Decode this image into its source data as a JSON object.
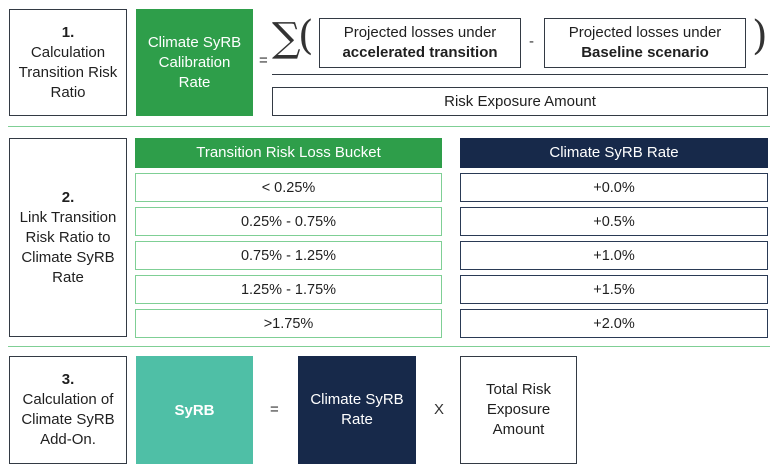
{
  "section1": {
    "step_num": "1.",
    "step_text": "Calculation Transition Risk Ratio",
    "rate_box": "Climate SyRB Calibration Rate",
    "equals": "=",
    "sum_symbol": "∑",
    "open_paren": "(",
    "close_paren": ")",
    "minus": "-",
    "loss_a_line1": "Projected losses under",
    "loss_a_line2": "accelerated transition",
    "loss_b_line1": "Projected losses under",
    "loss_b_line2": "Baseline scenario",
    "denominator": "Risk Exposure Amount"
  },
  "section2": {
    "step_num": "2.",
    "step_text": "Link Transition Risk Ratio to Climate SyRB Rate",
    "bucket_header": "Transition Risk Loss Bucket",
    "rate_header": "Climate SyRB Rate",
    "buckets": [
      "< 0.25%",
      "0.25% - 0.75%",
      "0.75% - 1.25%",
      "1.25% - 1.75%",
      ">1.75%"
    ],
    "rates": [
      "+0.0%",
      "+0.5%",
      "+1.0%",
      "+1.5%",
      "+2.0%"
    ]
  },
  "section3": {
    "step_num": "3.",
    "step_text": "Calculation of Climate SyRB Add-On.",
    "syrb": "SyRB",
    "equals": "=",
    "rate_box": "Climate SyRB Rate",
    "times": "X",
    "total_box": "Total Risk Exposure Amount"
  },
  "colors": {
    "green": "#2e9e4a",
    "light_green": "#7fcf95",
    "teal": "#4fbfa6",
    "navy": "#17294a"
  }
}
